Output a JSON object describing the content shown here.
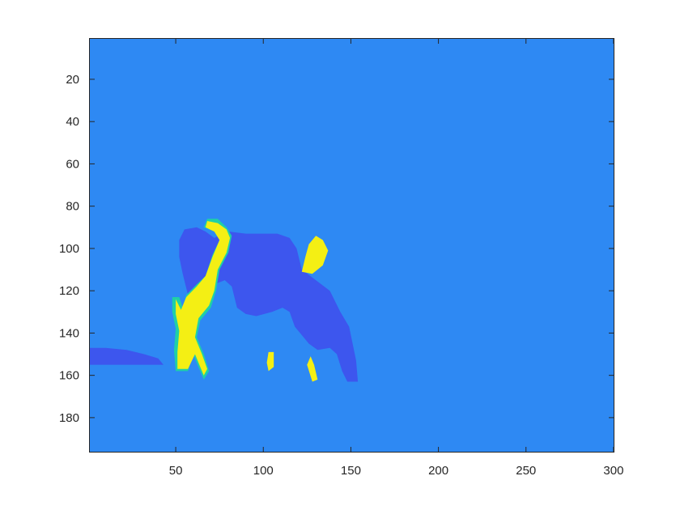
{
  "chart_data": {
    "type": "heatmap",
    "title": "",
    "xlabel": "",
    "ylabel": "",
    "xlim": [
      0.5,
      300.5
    ],
    "ylim": [
      196.5,
      0.5
    ],
    "y_direction": "reversed",
    "grid": false,
    "colorbar": false,
    "x_ticks": [
      50,
      100,
      150,
      200,
      250,
      300
    ],
    "y_ticks": [
      20,
      40,
      60,
      80,
      100,
      120,
      140,
      160,
      180
    ],
    "colors": {
      "background": "#2e89f3",
      "dark_region": "#3d56ee",
      "bright_region": "#f4ef14",
      "edge_region": "#1fd0a6",
      "axes_line": "#262626"
    },
    "regions": [
      {
        "label": "background",
        "value": 1,
        "color": "#2e89f3",
        "outline": [
          [
            0.5,
            0.5
          ],
          [
            300.5,
            0.5
          ],
          [
            300.5,
            196.5
          ],
          [
            0.5,
            196.5
          ]
        ]
      },
      {
        "label": "body",
        "value": 0,
        "color": "#3d56ee",
        "outline": [
          [
            52,
            96
          ],
          [
            55,
            91
          ],
          [
            62,
            90
          ],
          [
            67,
            92
          ],
          [
            72,
            95
          ],
          [
            80,
            92
          ],
          [
            90,
            93
          ],
          [
            108,
            93
          ],
          [
            115,
            95
          ],
          [
            119,
            100
          ],
          [
            122,
            110
          ],
          [
            130,
            115
          ],
          [
            138,
            120
          ],
          [
            144,
            130
          ],
          [
            149,
            137
          ],
          [
            151,
            145
          ],
          [
            153,
            153
          ],
          [
            154,
            163
          ],
          [
            148,
            163
          ],
          [
            145,
            158
          ],
          [
            142,
            150
          ],
          [
            138,
            147
          ],
          [
            131,
            148
          ],
          [
            126,
            145
          ],
          [
            121,
            140
          ],
          [
            118,
            137
          ],
          [
            115,
            130
          ],
          [
            111,
            128
          ],
          [
            105,
            130
          ],
          [
            96,
            132
          ],
          [
            90,
            131
          ],
          [
            85,
            128
          ],
          [
            82,
            118
          ],
          [
            78,
            115
          ],
          [
            72,
            117
          ],
          [
            65,
            122
          ],
          [
            62,
            128
          ],
          [
            60,
            130
          ],
          [
            57,
            122
          ],
          [
            54,
            112
          ],
          [
            52,
            104
          ]
        ]
      },
      {
        "label": "ground-shadow",
        "value": 0,
        "color": "#3d56ee",
        "outline": [
          [
            0.5,
            147
          ],
          [
            10,
            147
          ],
          [
            22,
            148
          ],
          [
            32,
            150
          ],
          [
            40,
            152
          ],
          [
            43,
            155
          ],
          [
            30,
            155
          ],
          [
            15,
            155
          ],
          [
            0.5,
            155
          ]
        ]
      },
      {
        "label": "front-legs-edge",
        "value": 3,
        "color": "#1fd0a6",
        "outline": [
          [
            68,
            86
          ],
          [
            74,
            86
          ],
          [
            79,
            90
          ],
          [
            82,
            94
          ],
          [
            80,
            102
          ],
          [
            75,
            110
          ],
          [
            73,
            120
          ],
          [
            70,
            128
          ],
          [
            64,
            134
          ],
          [
            62,
            142
          ],
          [
            66,
            150
          ],
          [
            69,
            158
          ],
          [
            66,
            162
          ],
          [
            60,
            150
          ],
          [
            57,
            158
          ],
          [
            50,
            158
          ],
          [
            49,
            148
          ],
          [
            50,
            138
          ],
          [
            48,
            130
          ],
          [
            48,
            123
          ],
          [
            52,
            123
          ],
          [
            54,
            128
          ],
          [
            56,
            122
          ],
          [
            62,
            117
          ],
          [
            67,
            113
          ],
          [
            71,
            103
          ],
          [
            75,
            96
          ],
          [
            72,
            92
          ],
          [
            66,
            90
          ]
        ]
      },
      {
        "label": "front-legs",
        "value": 4,
        "color": "#f4ef14",
        "outline": [
          [
            68,
            87
          ],
          [
            74,
            88
          ],
          [
            79,
            91
          ],
          [
            81,
            95
          ],
          [
            79,
            102
          ],
          [
            74,
            110
          ],
          [
            72,
            120
          ],
          [
            69,
            127
          ],
          [
            63,
            133
          ],
          [
            61,
            142
          ],
          [
            65,
            150
          ],
          [
            68,
            157
          ],
          [
            66,
            160
          ],
          [
            61,
            150
          ],
          [
            57,
            157
          ],
          [
            51,
            157
          ],
          [
            51,
            149
          ],
          [
            52,
            139
          ],
          [
            50,
            131
          ],
          [
            50,
            124
          ],
          [
            53,
            129
          ],
          [
            56,
            123
          ],
          [
            62,
            118
          ],
          [
            67,
            113
          ],
          [
            71,
            104
          ],
          [
            75,
            96
          ],
          [
            72,
            92
          ],
          [
            67,
            90
          ]
        ]
      },
      {
        "label": "back-patch",
        "value": 4,
        "color": "#f4ef14",
        "outline": [
          [
            122,
            111
          ],
          [
            124,
            104
          ],
          [
            126,
            98
          ],
          [
            130,
            94
          ],
          [
            134,
            96
          ],
          [
            137,
            101
          ],
          [
            134,
            108
          ],
          [
            128,
            112
          ]
        ]
      },
      {
        "label": "back-leg-spot-1",
        "value": 4,
        "color": "#f4ef14",
        "outline": [
          [
            102,
            154
          ],
          [
            103,
            149
          ],
          [
            106,
            149
          ],
          [
            106,
            156
          ],
          [
            103,
            158
          ]
        ]
      },
      {
        "label": "back-leg-spot-2",
        "value": 4,
        "color": "#f4ef14",
        "outline": [
          [
            125,
            155
          ],
          [
            127,
            151
          ],
          [
            129,
            155
          ],
          [
            131,
            162
          ],
          [
            128,
            163
          ]
        ]
      }
    ]
  }
}
